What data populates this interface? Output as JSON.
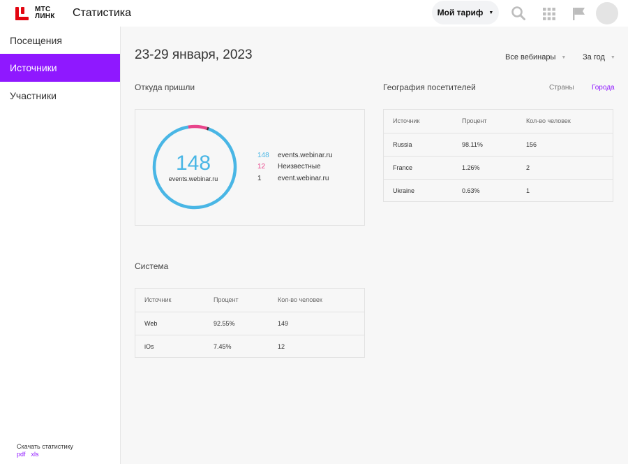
{
  "header": {
    "logo_line1": "МТС",
    "logo_line2": "ЛИНК",
    "app_title": "Статистика",
    "tariff_label": "Мой тариф"
  },
  "sidebar": {
    "items": [
      {
        "label": "Посещения",
        "active": false
      },
      {
        "label": "Источники",
        "active": true
      },
      {
        "label": "Участники",
        "active": false
      }
    ],
    "download_label": "Скачать статистику",
    "download_pdf": "pdf",
    "download_xls": "xls"
  },
  "main": {
    "date_range": "23-29 января, 2023",
    "filter_webinars": "Все вебинары",
    "filter_period": "За год"
  },
  "sources": {
    "title": "Откуда пришли",
    "total": "148",
    "total_label": "events.webinar.ru",
    "legend": [
      {
        "count": "148",
        "name": "events.webinar.ru",
        "color": "#49b6e5"
      },
      {
        "count": "12",
        "name": "Неизвестные",
        "color": "#e8458b"
      },
      {
        "count": "1",
        "name": "event.webinar.ru",
        "color": "#333333"
      }
    ],
    "segments": [
      148,
      12,
      1
    ]
  },
  "geo": {
    "title": "География посетителей",
    "tab_countries": "Страны",
    "tab_cities": "Города",
    "headers": [
      "Источник",
      "Процент",
      "Кол-во человек"
    ],
    "rows": [
      [
        "Russia",
        "98.11%",
        "156"
      ],
      [
        "France",
        "1.26%",
        "2"
      ],
      [
        "Ukraine",
        "0.63%",
        "1"
      ]
    ]
  },
  "system": {
    "title": "Система",
    "headers": [
      "Источник",
      "Процент",
      "Кол-во человек"
    ],
    "rows": [
      [
        "Web",
        "92.55%",
        "149"
      ],
      [
        "iOs",
        "7.45%",
        "12"
      ]
    ]
  },
  "colors": {
    "accent": "#8f18ff",
    "brand_red": "#e30611",
    "donut_blue": "#49b6e5",
    "donut_pink": "#e8458b"
  },
  "icons": [
    "search-icon",
    "apps-grid-icon",
    "flag-icon",
    "avatar",
    "chevron-down-icon"
  ]
}
